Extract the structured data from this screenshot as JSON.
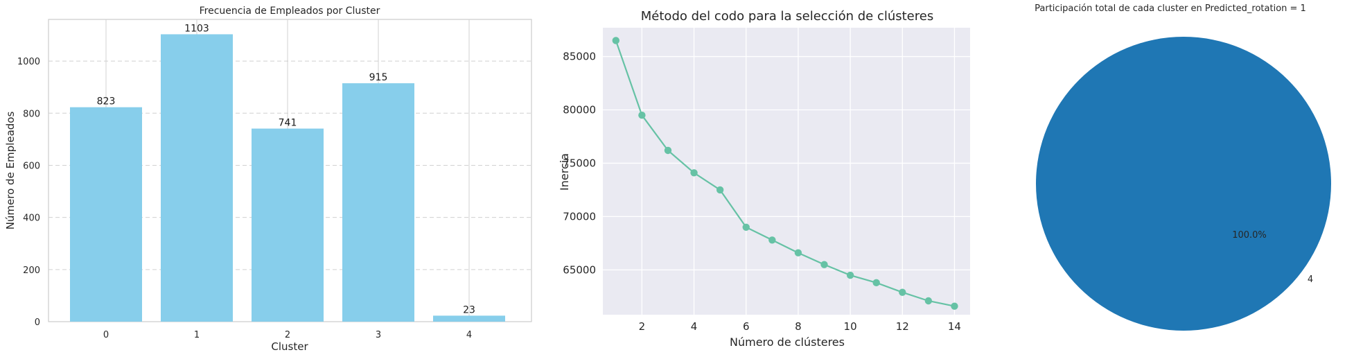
{
  "chart_data": [
    {
      "type": "bar",
      "title": "Frecuencia de Empleados por Cluster",
      "xlabel": "Cluster",
      "ylabel": "Número de Empleados",
      "categories": [
        "0",
        "1",
        "2",
        "3",
        "4"
      ],
      "values": [
        823,
        1103,
        741,
        915,
        23
      ],
      "data_labels": [
        "823",
        "1103",
        "741",
        "915",
        "23"
      ],
      "ylim": [
        0,
        1160
      ],
      "yticks": [
        0,
        200,
        400,
        600,
        800,
        1000
      ],
      "grid": "y-dashed",
      "color": "#87CEEB"
    },
    {
      "type": "line",
      "title": "Método del codo para la selección de clústeres",
      "xlabel": "Número de clústeres",
      "ylabel": "Inercia",
      "x": [
        1,
        2,
        3,
        4,
        5,
        6,
        7,
        8,
        9,
        10,
        11,
        12,
        13,
        14
      ],
      "y": [
        86500,
        79500,
        76200,
        74100,
        72500,
        69000,
        67800,
        66600,
        65500,
        64500,
        63800,
        62900,
        62100,
        61600
      ],
      "xlim": [
        0.5,
        14.6
      ],
      "ylim": [
        60800,
        87700
      ],
      "xticks": [
        2,
        4,
        6,
        8,
        10,
        12,
        14
      ],
      "yticks": [
        65000,
        70000,
        75000,
        80000,
        85000
      ],
      "grid": "on",
      "color": "#66C2A5"
    },
    {
      "type": "pie",
      "title": "Participación total de cada cluster en Predicted_rotation = 1",
      "labels": [
        "4"
      ],
      "values": [
        100.0
      ],
      "pct_labels": [
        "100.0%"
      ],
      "color": "#1F77B4"
    }
  ]
}
